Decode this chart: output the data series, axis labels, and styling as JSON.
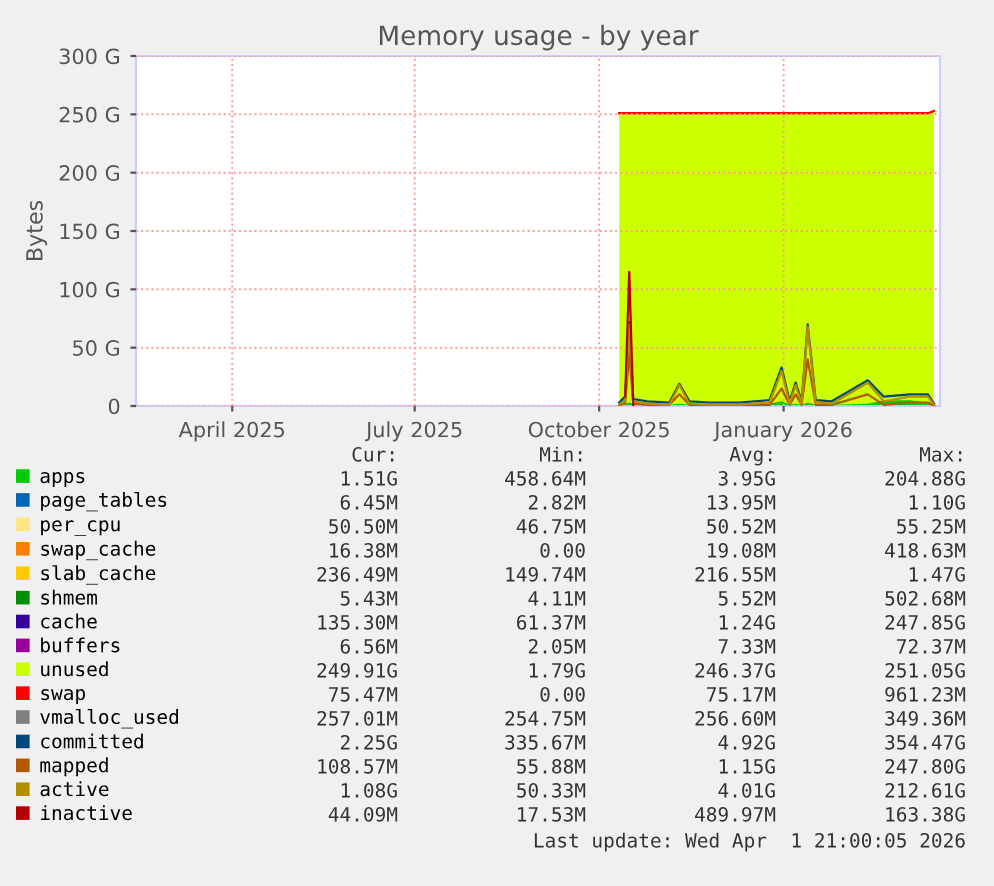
{
  "chart_data": {
    "type": "area",
    "title": "Memory usage - by year",
    "ylabel": "Bytes",
    "stacked": true,
    "grid": true,
    "legend": "bottom",
    "x": [
      "2025-10-11",
      "2025-10-14",
      "2025-10-16",
      "2025-10-18",
      "2025-10-25",
      "2025-11-05",
      "2025-11-10",
      "2025-11-15",
      "2025-11-25",
      "2025-12-10",
      "2025-12-25",
      "2025-12-31",
      "2026-01-04",
      "2026-01-07",
      "2026-01-10",
      "2026-01-13",
      "2026-01-17",
      "2026-01-25",
      "2026-02-12",
      "2026-02-20",
      "2026-03-05",
      "2026-03-14",
      "2026-03-17"
    ],
    "xlim": [
      "2025-02-12",
      "2026-03-20"
    ],
    "xticks": [
      {
        "value": "2025-04-01",
        "label": "April 2025"
      },
      {
        "value": "2025-07-01",
        "label": "July 2025"
      },
      {
        "value": "2025-10-01",
        "label": "October 2025"
      },
      {
        "value": "2026-01-01",
        "label": "January 2026"
      }
    ],
    "ylim": [
      0,
      300
    ],
    "yticks": [
      0,
      {
        "value": 50,
        "label": "50 G"
      },
      {
        "value": 100,
        "label": "100 G"
      },
      {
        "value": 150,
        "label": "150 G"
      },
      {
        "value": 200,
        "label": "200 G"
      },
      {
        "value": 250,
        "label": "250 G"
      },
      {
        "value": 300,
        "label": "300 G"
      }
    ],
    "series": [
      {
        "name": "apps",
        "color": "#00cc00",
        "values": [
          1,
          2,
          3,
          2,
          1,
          1,
          2,
          1,
          1,
          1,
          2,
          4,
          1,
          2,
          1,
          3,
          1,
          1,
          2,
          5,
          5,
          3,
          2
        ]
      },
      {
        "name": "page_tables",
        "color": "#0066b3",
        "values": [
          null,
          null,
          null,
          null,
          null,
          null,
          null,
          null,
          null,
          null,
          null,
          null,
          null,
          null,
          null,
          null,
          null,
          null,
          null,
          null,
          null,
          null,
          null
        ]
      },
      {
        "name": "per_cpu",
        "color": "#ffe680",
        "values": [
          null,
          null,
          null,
          null,
          null,
          null,
          null,
          null,
          null,
          null,
          null,
          null,
          null,
          null,
          null,
          null,
          null,
          null,
          null,
          null,
          null,
          null,
          null
        ]
      },
      {
        "name": "swap_cache",
        "color": "#ff8000",
        "values": [
          null,
          null,
          null,
          null,
          null,
          null,
          null,
          null,
          null,
          null,
          null,
          null,
          null,
          null,
          null,
          null,
          null,
          null,
          null,
          null,
          null,
          null,
          null
        ]
      },
      {
        "name": "slab_cache",
        "color": "#ffcc00",
        "values": [
          null,
          null,
          null,
          null,
          null,
          null,
          null,
          null,
          null,
          null,
          null,
          null,
          null,
          null,
          null,
          null,
          null,
          null,
          null,
          null,
          null,
          null,
          null
        ]
      },
      {
        "name": "shmem",
        "color": "#008f00",
        "values": [
          null,
          null,
          null,
          null,
          null,
          null,
          null,
          null,
          null,
          null,
          null,
          null,
          null,
          null,
          null,
          null,
          null,
          null,
          null,
          null,
          null,
          null,
          null
        ]
      },
      {
        "name": "cache",
        "color": "#330099",
        "values": [
          null,
          null,
          null,
          null,
          null,
          null,
          null,
          null,
          null,
          null,
          null,
          null,
          null,
          null,
          null,
          null,
          null,
          null,
          null,
          null,
          null,
          null,
          null
        ]
      },
      {
        "name": "buffers",
        "color": "#990099",
        "values": [
          null,
          null,
          null,
          null,
          null,
          null,
          null,
          null,
          null,
          null,
          null,
          null,
          null,
          null,
          null,
          null,
          null,
          null,
          null,
          null,
          null,
          null,
          null
        ]
      },
      {
        "name": "unused",
        "color": "#ccff00",
        "values": [
          249,
          248,
          247,
          248,
          249,
          249,
          248,
          249,
          249,
          249,
          248,
          246,
          249,
          248,
          249,
          247,
          249,
          249,
          248,
          245,
          245,
          247,
          250
        ]
      },
      {
        "name": "swap",
        "color": "#ff0000",
        "values": [
          1,
          1,
          1,
          1,
          1,
          1,
          1,
          1,
          1,
          1,
          1,
          1,
          1,
          1,
          1,
          1,
          1,
          1,
          1,
          1,
          1,
          1,
          1
        ]
      },
      {
        "name": "vmalloc_used",
        "type": "line",
        "color": "#808080",
        "values": [
          null,
          null,
          null,
          null,
          null,
          null,
          null,
          null,
          null,
          null,
          null,
          null,
          null,
          null,
          null,
          null,
          null,
          null,
          null,
          null,
          null,
          null,
          null
        ]
      },
      {
        "name": "committed",
        "type": "line",
        "color": "#00487d",
        "values": [
          3,
          8,
          72,
          6,
          4,
          3,
          19,
          4,
          3,
          3,
          5,
          33,
          4,
          20,
          4,
          70,
          5,
          4,
          22,
          8,
          10,
          10,
          2
        ]
      },
      {
        "name": "mapped",
        "type": "line",
        "color": "#b35a00",
        "values": [
          0,
          3,
          45,
          2,
          1,
          1,
          10,
          1,
          1,
          1,
          1,
          15,
          1,
          10,
          1,
          40,
          1,
          1,
          10,
          1,
          3,
          3,
          0
        ]
      },
      {
        "name": "active",
        "type": "line",
        "color": "#b38f00",
        "values": [
          1,
          5,
          70,
          4,
          2,
          1,
          18,
          2,
          1,
          1,
          3,
          30,
          2,
          18,
          2,
          68,
          3,
          2,
          20,
          4,
          8,
          8,
          1
        ]
      },
      {
        "name": "inactive",
        "type": "line",
        "color": "#b30000",
        "values": [
          null,
          8,
          115,
          1,
          null,
          null,
          null,
          null,
          null,
          null,
          null,
          null,
          null,
          null,
          null,
          null,
          null,
          null,
          null,
          null,
          null,
          null,
          null
        ]
      }
    ],
    "annotations": [
      "Cur:",
      "Min:",
      "Avg:",
      "Max:",
      "1.51G",
      "458.64M",
      "3.95G",
      "204.88G",
      "6.45M",
      "2.82M",
      "13.95M",
      "1.10G",
      "50.50M",
      "46.75M",
      "50.52M",
      "55.25M",
      "16.38M",
      "0.00",
      "19.08M",
      "418.63M",
      "236.49M",
      "149.74M",
      "216.55M",
      "1.47G",
      "5.43M",
      "4.11M",
      "5.52M",
      "502.68M",
      "135.30M",
      "61.37M",
      "1.24G",
      "247.85G",
      "6.56M",
      "2.05M",
      "7.33M",
      "72.37M",
      "249.91G",
      "1.79G",
      "246.37G",
      "251.05G",
      "75.47M",
      "0.00",
      "75.17M",
      "961.23M",
      "257.01M",
      "254.75M",
      "256.60M",
      "349.36M",
      "2.25G",
      "335.67M",
      "4.92G",
      "354.47G",
      "108.57M",
      "55.88M",
      "1.15G",
      "247.80G",
      "1.08G",
      "50.33M",
      "4.01G",
      "212.61G",
      "44.09M",
      "17.53M",
      "489.97M",
      "163.38G",
      "Last update: Wed Apr  1 21:00:05 2026"
    ]
  }
}
